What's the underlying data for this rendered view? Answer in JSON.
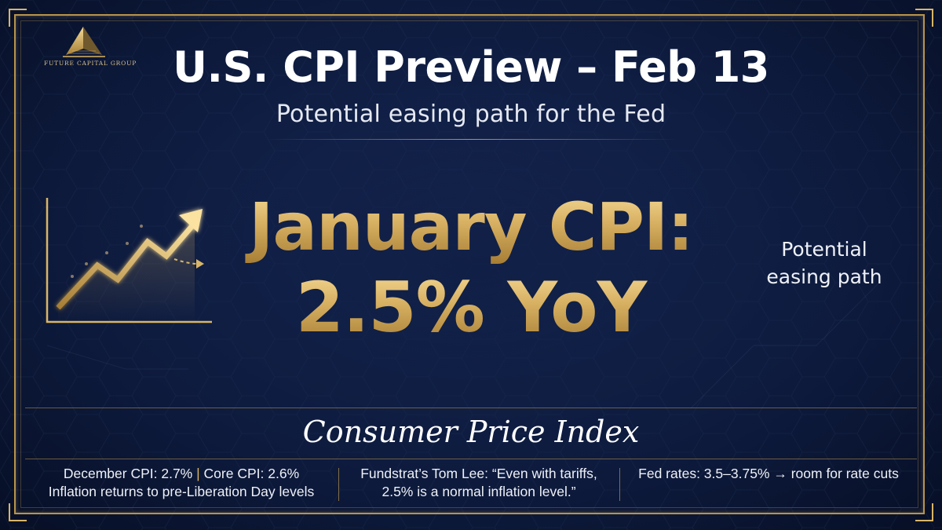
{
  "brand": {
    "name": "FUTURE CAPITAL GROUP",
    "gold": "#d9b567",
    "navy": "#0f1d42"
  },
  "header": {
    "title": "U.S. CPI Preview – Feb 13",
    "subtitle": "Potential easing path for the Fed"
  },
  "hero": {
    "icon": "rising-chart-arrow-icon",
    "line1": "January CPI:",
    "line2": "2.5% YoY",
    "side_note_line1": "Potential",
    "side_note_line2": "easing path"
  },
  "footer": {
    "section_title": "Consumer Price Index",
    "facts": [
      {
        "line1_a": "December CPI: 2.7%",
        "line1_sep": "|",
        "line1_b": "Core CPI: 2.6%",
        "line2": "Inflation returns to pre-Liberation Day levels"
      },
      {
        "line1": "Fundstrat’s Tom Lee: “Even with tariffs,",
        "line2": "2.5% is a normal inflation level.”"
      },
      {
        "line1": "Fed rates: 3.5–3.75% → room for rate cuts"
      }
    ]
  }
}
